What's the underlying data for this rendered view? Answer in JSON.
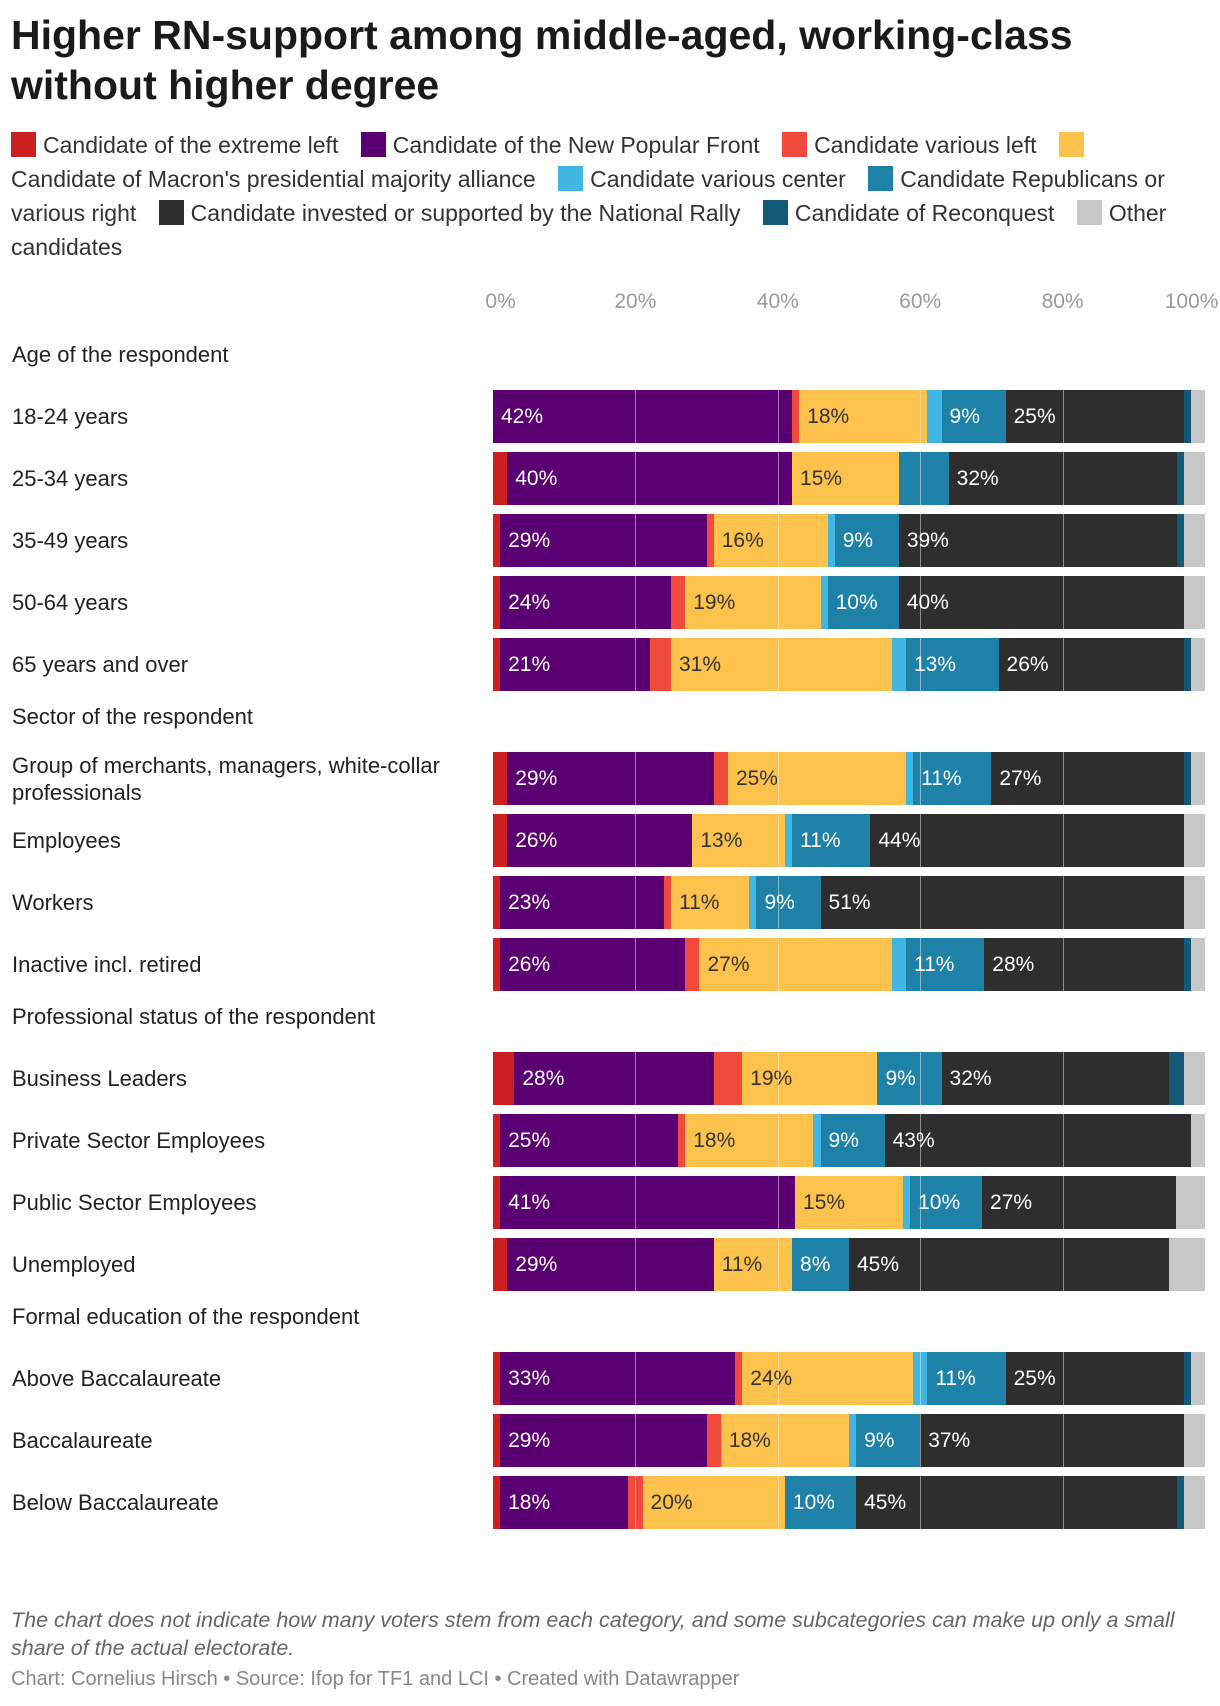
{
  "title": "Higher RN-support among middle-aged, working-class without higher degree",
  "legend": [
    {
      "label": "Candidate of the extreme left",
      "color": "#cc1f1f"
    },
    {
      "label": "Candidate of the New Popular Front",
      "color": "#5b0073"
    },
    {
      "label": "Candidate various left",
      "color": "#f04a3c"
    },
    {
      "label": "Candidate of Macron's presidential majority alliance",
      "color": "#fdc24b"
    },
    {
      "label": "Candidate various center",
      "color": "#42b6e3"
    },
    {
      "label": "Candidate Republicans or various right",
      "color": "#1e81a8"
    },
    {
      "label": "Candidate invested or supported by the National Rally",
      "color": "#2e2e2e"
    },
    {
      "label": "Candidate of Reconquest",
      "color": "#135a78"
    },
    {
      "label": "Other candidates",
      "color": "#c7c7c7"
    }
  ],
  "note": "The chart does not indicate how many voters stem from each category, and some subcategories can make up only a small share of the actual electorate.",
  "credit": "Chart: Cornelius Hirsch • Source: Ifop for TF1 and LCI • Created with Datawrapper",
  "chart_data": {
    "type": "bar",
    "orientation": "horizontal-stacked-100",
    "xlim": [
      0,
      100
    ],
    "ticks": [
      "0%",
      "20%",
      "40%",
      "60%",
      "80%",
      "100%"
    ],
    "series_names": [
      "Candidate of the extreme left",
      "Candidate of the New Popular Front",
      "Candidate various left",
      "Candidate of Macron's presidential majority alliance",
      "Candidate various center",
      "Candidate Republicans or various right",
      "Candidate invested or supported by the National Rally",
      "Candidate of Reconquest",
      "Other candidates"
    ],
    "groups": [
      {
        "name": "Age of the respondent",
        "rows": [
          {
            "label": "18-24 years",
            "values": [
              0,
              42,
              1,
              18,
              2,
              9,
              25,
              1,
              2
            ],
            "labels": [
              "",
              "42%",
              "",
              "18%",
              "",
              "9%",
              "25%",
              "",
              ""
            ]
          },
          {
            "label": "25-34 years",
            "values": [
              2,
              40,
              0,
              15,
              0,
              7,
              32,
              1,
              3
            ],
            "labels": [
              "",
              "40%",
              "",
              "15%",
              "",
              "",
              "32%",
              "",
              ""
            ]
          },
          {
            "label": "35-49 years",
            "values": [
              1,
              29,
              1,
              16,
              1,
              9,
              39,
              1,
              3
            ],
            "labels": [
              "",
              "29%",
              "",
              "16%",
              "",
              "9%",
              "39%",
              "",
              ""
            ]
          },
          {
            "label": "50-64 years",
            "values": [
              1,
              24,
              2,
              19,
              1,
              10,
              40,
              0,
              3
            ],
            "labels": [
              "",
              "24%",
              "",
              "19%",
              "",
              "10%",
              "40%",
              "",
              ""
            ]
          },
          {
            "label": "65 years and over",
            "values": [
              1,
              21,
              3,
              31,
              2,
              13,
              26,
              1,
              2
            ],
            "labels": [
              "",
              "21%",
              "",
              "31%",
              "",
              "13%",
              "26%",
              "",
              ""
            ]
          }
        ]
      },
      {
        "name": "Sector of the respondent",
        "rows": [
          {
            "label": "Group of merchants, managers, white-collar professionals",
            "values": [
              2,
              29,
              2,
              25,
              1,
              11,
              27,
              1,
              2
            ],
            "labels": [
              "",
              "29%",
              "",
              "25%",
              "",
              "11%",
              "27%",
              "",
              ""
            ]
          },
          {
            "label": "Employees",
            "values": [
              2,
              26,
              0,
              13,
              1,
              11,
              44,
              0,
              3
            ],
            "labels": [
              "",
              "26%",
              "",
              "13%",
              "",
              "11%",
              "44%",
              "",
              ""
            ]
          },
          {
            "label": "Workers",
            "values": [
              1,
              23,
              1,
              11,
              1,
              9,
              51,
              0,
              3
            ],
            "labels": [
              "",
              "23%",
              "",
              "11%",
              "",
              "9%",
              "51%",
              "",
              ""
            ]
          },
          {
            "label": "Inactive incl. retired",
            "values": [
              1,
              26,
              2,
              27,
              2,
              11,
              28,
              1,
              2
            ],
            "labels": [
              "",
              "26%",
              "",
              "27%",
              "",
              "11%",
              "28%",
              "",
              ""
            ]
          }
        ]
      },
      {
        "name": "Professional status of the respondent",
        "rows": [
          {
            "label": "Business Leaders",
            "values": [
              3,
              28,
              4,
              19,
              0,
              9,
              32,
              2,
              3
            ],
            "labels": [
              "",
              "28%",
              "",
              "19%",
              "",
              "9%",
              "32%",
              "",
              ""
            ]
          },
          {
            "label": "Private Sector Employees",
            "values": [
              1,
              25,
              1,
              18,
              1,
              9,
              43,
              0,
              2
            ],
            "labels": [
              "",
              "25%",
              "",
              "18%",
              "",
              "9%",
              "43%",
              "",
              ""
            ]
          },
          {
            "label": "Public Sector Employees",
            "values": [
              1,
              41,
              0,
              15,
              1,
              10,
              27,
              0,
              4
            ],
            "labels": [
              "",
              "41%",
              "",
              "15%",
              "",
              "10%",
              "27%",
              "",
              ""
            ]
          },
          {
            "label": "Unemployed",
            "values": [
              2,
              29,
              0,
              11,
              0,
              8,
              45,
              0,
              5
            ],
            "labels": [
              "",
              "29%",
              "",
              "11%",
              "",
              "8%",
              "45%",
              "",
              ""
            ]
          }
        ]
      },
      {
        "name": "Formal education of the respondent",
        "rows": [
          {
            "label": "Above Baccalaureate",
            "values": [
              1,
              33,
              1,
              24,
              2,
              11,
              25,
              1,
              2
            ],
            "labels": [
              "",
              "33%",
              "",
              "24%",
              "",
              "11%",
              "25%",
              "",
              ""
            ]
          },
          {
            "label": "Baccalaureate",
            "values": [
              1,
              29,
              2,
              18,
              1,
              9,
              37,
              0,
              3
            ],
            "labels": [
              "",
              "29%",
              "",
              "18%",
              "",
              "9%",
              "37%",
              "",
              ""
            ]
          },
          {
            "label": "Below Baccalaureate",
            "values": [
              1,
              18,
              2,
              20,
              0,
              10,
              45,
              1,
              3
            ],
            "labels": [
              "",
              "18%",
              "",
              "20%",
              "",
              "10%",
              "45%",
              "",
              ""
            ]
          }
        ]
      }
    ]
  }
}
